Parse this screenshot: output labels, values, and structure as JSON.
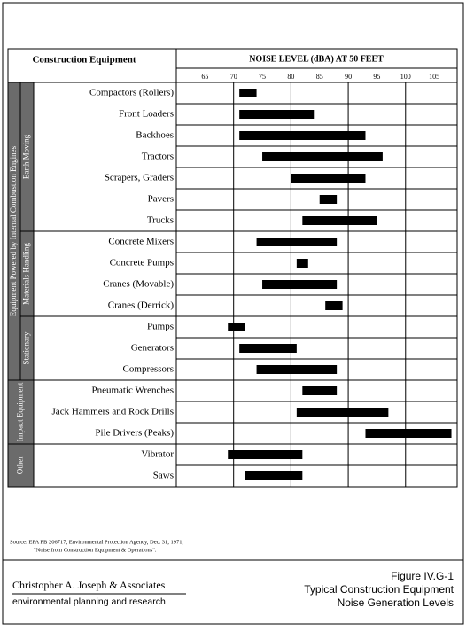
{
  "chart_data": {
    "type": "range_bar",
    "column_header": "Construction Equipment",
    "xlabel": "NOISE LEVEL (dBA) AT 50 FEET",
    "xlim": [
      60,
      109
    ],
    "xticks": [
      65,
      70,
      75,
      80,
      85,
      90,
      95,
      100,
      105
    ],
    "color": "#000000",
    "groups": [
      {
        "name": "Equipment Powered by Internal Combustion Engines",
        "groups": [
          {
            "name": "Earth Moving",
            "categories": [
              "Compactors (Rollers)",
              "Front Loaders",
              "Backhoes",
              "Tractors",
              "Scrapers, Graders",
              "Pavers",
              "Trucks"
            ],
            "values": [
              [
                71,
                74
              ],
              [
                71,
                84
              ],
              [
                71,
                93
              ],
              [
                75,
                96
              ],
              [
                80,
                93
              ],
              [
                85,
                88
              ],
              [
                82,
                95
              ]
            ]
          },
          {
            "name": "Materials Handling",
            "categories": [
              "Concrete Mixers",
              "Concrete Pumps",
              "Cranes (Movable)",
              "Cranes (Derrick)"
            ],
            "values": [
              [
                74,
                88
              ],
              [
                81,
                83
              ],
              [
                75,
                88
              ],
              [
                86,
                89
              ]
            ]
          },
          {
            "name": "Stationary",
            "categories": [
              "Pumps",
              "Generators",
              "Compressors"
            ],
            "values": [
              [
                69,
                72
              ],
              [
                71,
                81
              ],
              [
                74,
                88
              ]
            ]
          }
        ]
      },
      {
        "name": "Impact Equipment",
        "categories": [
          "Pneumatic Wrenches",
          "Jack Hammers and Rock Drills",
          "Pile Drivers (Peaks)"
        ],
        "values": [
          [
            82,
            88
          ],
          [
            81,
            97
          ],
          [
            93,
            108
          ]
        ]
      },
      {
        "name": "Other",
        "categories": [
          "Vibrator",
          "Saws"
        ],
        "values": [
          [
            69,
            82
          ],
          [
            72,
            82
          ]
        ]
      }
    ]
  },
  "source": [
    "Source:  EPA PB 206717, Environmental Protection Agency, Dec. 31, 1971,",
    "\"Noise from Construction Equipment & Operations\"."
  ],
  "footer": {
    "firm": "Christopher A. Joseph & Associates",
    "tagline": "environmental planning and research",
    "figure": [
      "Figure IV.G-1",
      "Typical Construction Equipment",
      "Noise Generation Levels"
    ]
  }
}
